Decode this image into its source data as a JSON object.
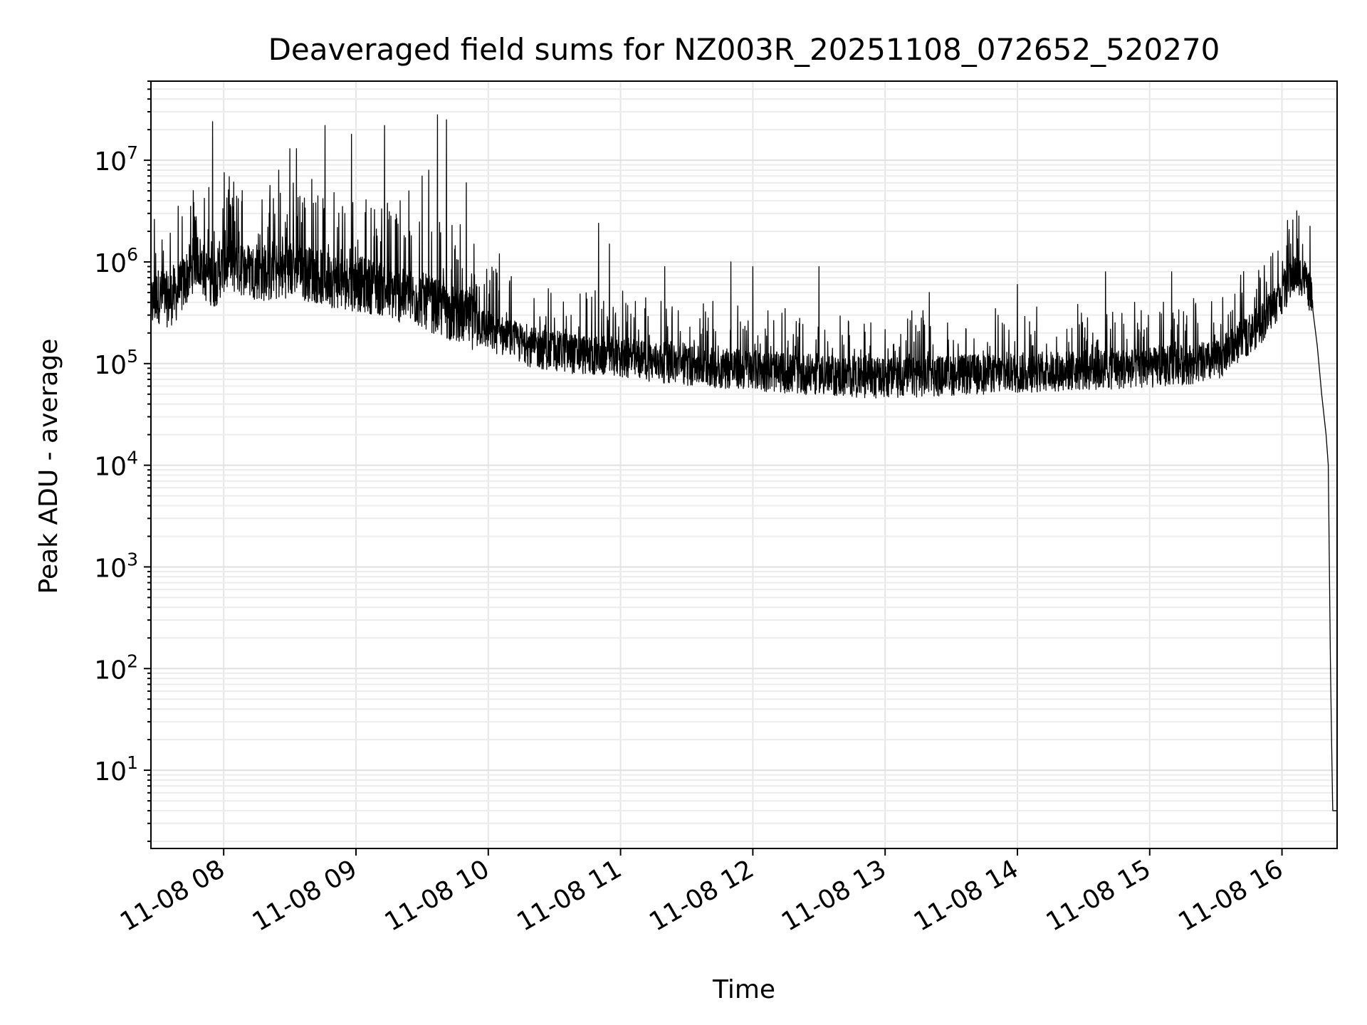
{
  "chart_data": {
    "type": "line",
    "title": "Deaveraged field sums for NZ003R_20251108_072652_520270",
    "xlabel": "Time",
    "ylabel": "Peak ADU - average",
    "yscale": "log",
    "ylim": [
      1.7,
      60000000
    ],
    "xlim": [
      "2025-11-08 07:27",
      "2025-11-08 16:25"
    ],
    "grid": true,
    "x_ticks": [
      "11-08 08",
      "11-08 09",
      "11-08 10",
      "11-08 11",
      "11-08 12",
      "11-08 13",
      "11-08 14",
      "11-08 15",
      "11-08 16"
    ],
    "y_ticks": [
      {
        "base": "10",
        "exp": "1"
      },
      {
        "base": "10",
        "exp": "2"
      },
      {
        "base": "10",
        "exp": "3"
      },
      {
        "base": "10",
        "exp": "4"
      },
      {
        "base": "10",
        "exp": "5"
      },
      {
        "base": "10",
        "exp": "6"
      },
      {
        "base": "10",
        "exp": "7"
      }
    ],
    "series": [
      {
        "color": "#000000",
        "points": [
          [
            "2025-11-08 07:27",
            400000
          ],
          [
            "2025-11-08 07:30",
            500000
          ],
          [
            "2025-11-08 07:35",
            450000
          ],
          [
            "2025-11-08 07:40",
            550000
          ],
          [
            "2025-11-08 07:45",
            900000
          ],
          [
            "2025-11-08 07:48",
            1200000
          ],
          [
            "2025-11-08 07:52",
            800000
          ],
          [
            "2025-11-08 07:56",
            700000
          ],
          [
            "2025-11-08 08:00",
            1000000
          ],
          [
            "2025-11-08 08:10",
            900000
          ],
          [
            "2025-11-08 08:20",
            800000
          ],
          [
            "2025-11-08 08:30",
            900000
          ],
          [
            "2025-11-08 08:40",
            800000
          ],
          [
            "2025-11-08 08:50",
            700000
          ],
          [
            "2025-11-08 09:00",
            650000
          ],
          [
            "2025-11-08 09:10",
            600000
          ],
          [
            "2025-11-08 09:20",
            500000
          ],
          [
            "2025-11-08 09:30",
            450000
          ],
          [
            "2025-11-08 09:40",
            350000
          ],
          [
            "2025-11-08 09:50",
            300000
          ],
          [
            "2025-11-08 10:00",
            220000
          ],
          [
            "2025-11-08 10:20",
            150000
          ],
          [
            "2025-11-08 10:40",
            130000
          ],
          [
            "2025-11-08 11:00",
            120000
          ],
          [
            "2025-11-08 11:30",
            100000
          ],
          [
            "2025-11-08 12:00",
            90000
          ],
          [
            "2025-11-08 12:30",
            80000
          ],
          [
            "2025-11-08 13:00",
            75000
          ],
          [
            "2025-11-08 13:30",
            80000
          ],
          [
            "2025-11-08 14:00",
            85000
          ],
          [
            "2025-11-08 14:30",
            90000
          ],
          [
            "2025-11-08 15:00",
            95000
          ],
          [
            "2025-11-08 15:30",
            110000
          ],
          [
            "2025-11-08 15:50",
            250000
          ],
          [
            "2025-11-08 16:00",
            500000
          ],
          [
            "2025-11-08 16:06",
            800000
          ],
          [
            "2025-11-08 16:10",
            750000
          ],
          [
            "2025-11-08 16:13",
            500000
          ],
          [
            "2025-11-08 16:16",
            150000
          ],
          [
            "2025-11-08 16:18",
            50000
          ],
          [
            "2025-11-08 16:20",
            20000
          ],
          [
            "2025-11-08 16:21",
            10000
          ],
          [
            "2025-11-08 16:22",
            100
          ],
          [
            "2025-11-08 16:23",
            4
          ],
          [
            "2025-11-08 16:25",
            4
          ]
        ]
      }
    ],
    "spikes": [
      [
        "2025-11-08 07:55",
        24000000
      ],
      [
        "2025-11-08 08:05",
        2500000
      ],
      [
        "2025-11-08 08:20",
        2200000
      ],
      [
        "2025-11-08 08:25",
        8000000
      ],
      [
        "2025-11-08 08:30",
        13000000
      ],
      [
        "2025-11-08 08:33",
        13000000
      ],
      [
        "2025-11-08 08:40",
        6500000
      ],
      [
        "2025-11-08 08:46",
        22000000
      ],
      [
        "2025-11-08 08:50",
        4800000
      ],
      [
        "2025-11-08 08:55",
        3000000
      ],
      [
        "2025-11-08 08:58",
        18000000
      ],
      [
        "2025-11-08 09:13",
        22000000
      ],
      [
        "2025-11-08 09:20",
        4000000
      ],
      [
        "2025-11-08 09:24",
        5000000
      ],
      [
        "2025-11-08 09:30",
        7000000
      ],
      [
        "2025-11-08 09:33",
        8000000
      ],
      [
        "2025-11-08 09:37",
        28000000
      ],
      [
        "2025-11-08 09:41",
        25000000
      ],
      [
        "2025-11-08 09:50",
        6000000
      ],
      [
        "2025-11-08 10:05",
        1200000
      ],
      [
        "2025-11-08 10:50",
        2400000
      ],
      [
        "2025-11-08 10:55",
        1500000
      ],
      [
        "2025-11-08 11:20",
        900000
      ],
      [
        "2025-11-08 11:50",
        1000000
      ],
      [
        "2025-11-08 12:00",
        900000
      ],
      [
        "2025-11-08 12:30",
        900000
      ],
      [
        "2025-11-08 13:20",
        500000
      ],
      [
        "2025-11-08 14:00",
        600000
      ],
      [
        "2025-11-08 14:40",
        800000
      ],
      [
        "2025-11-08 15:10",
        800000
      ],
      [
        "2025-11-08 15:50",
        700000
      ],
      [
        "2025-11-08 16:04",
        1500000
      ]
    ]
  }
}
